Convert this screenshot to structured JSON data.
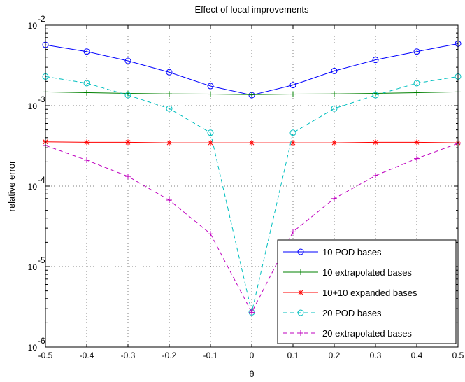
{
  "chart_data": {
    "type": "line",
    "title": "Effect of local improvements",
    "xlabel": "θ",
    "ylabel": "relative error",
    "xlim": [
      -0.5,
      0.5
    ],
    "ylim": [
      1e-06,
      0.01
    ],
    "yscale": "log",
    "grid": true,
    "legend_position": "bottom-right",
    "x_ticks": [
      -0.5,
      -0.4,
      -0.3,
      -0.2,
      -0.1,
      0,
      0.1,
      0.2,
      0.3,
      0.4,
      0.5
    ],
    "x_tick_labels": [
      "-0.5",
      "-0.4",
      "-0.3",
      "-0.2",
      "-0.1",
      "0",
      "0.1",
      "0.2",
      "0.3",
      "0.4",
      "0.5"
    ],
    "y_ticks": [
      {
        "value": 0.01,
        "base": "10",
        "exp": "-2"
      },
      {
        "value": 0.001,
        "base": "10",
        "exp": "-3"
      },
      {
        "value": 0.0001,
        "base": "10",
        "exp": "-4"
      },
      {
        "value": 1e-05,
        "base": "10",
        "exp": "-5"
      },
      {
        "value": 1e-06,
        "base": "10",
        "exp": "-6"
      }
    ],
    "x": [
      -0.5,
      -0.4,
      -0.3,
      -0.2,
      -0.1,
      0,
      0.1,
      0.2,
      0.3,
      0.4,
      0.5
    ],
    "series": [
      {
        "name": "10 POD bases",
        "color": "#0000ff",
        "dash": "solid",
        "marker": "circle",
        "values": [
          0.0057,
          0.0047,
          0.0036,
          0.0026,
          0.00175,
          0.00135,
          0.0018,
          0.0027,
          0.0037,
          0.0047,
          0.0059
        ]
      },
      {
        "name": "10 extrapolated bases",
        "color": "#008000",
        "dash": "solid",
        "marker": "plus",
        "values": [
          0.00148,
          0.00145,
          0.00142,
          0.0014,
          0.00139,
          0.00137,
          0.00139,
          0.0014,
          0.00142,
          0.00145,
          0.00148
        ]
      },
      {
        "name": "10+10 expanded bases",
        "color": "#ff0000",
        "dash": "solid",
        "marker": "asterisk",
        "values": [
          0.000355,
          0.00035,
          0.00035,
          0.000345,
          0.000345,
          0.000345,
          0.000345,
          0.000345,
          0.00035,
          0.00035,
          0.000345
        ]
      },
      {
        "name": "20 POD bases",
        "color": "#00bfbf",
        "dash": "dashed",
        "marker": "circle",
        "values": [
          0.0023,
          0.0019,
          0.00135,
          0.00092,
          0.00046,
          2.7e-06,
          0.00046,
          0.00092,
          0.00135,
          0.0019,
          0.0023
        ]
      },
      {
        "name": "20 extrapolated bases",
        "color": "#bf00bf",
        "dash": "dashed",
        "marker": "plus",
        "values": [
          0.00032,
          0.00021,
          0.000132,
          6.7e-05,
          2.55e-05,
          2.7e-06,
          2.7e-05,
          7e-05,
          0.000135,
          0.00022,
          0.00034
        ]
      }
    ]
  }
}
